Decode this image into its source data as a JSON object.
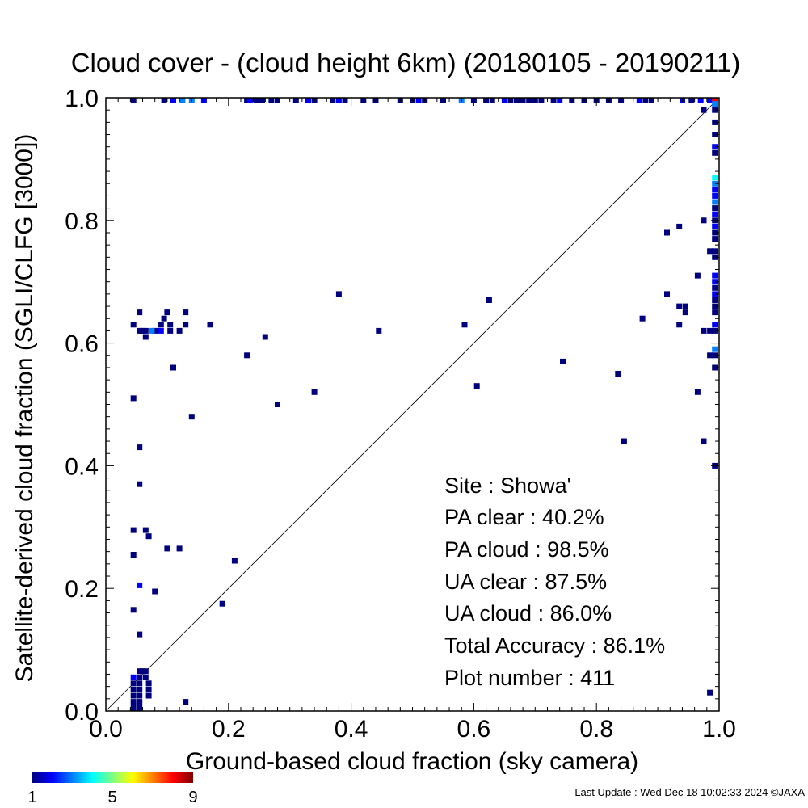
{
  "chart_data": {
    "type": "scatter",
    "title": "Cloud cover - (cloud height 6km)  (20180105 - 20190211)",
    "xlabel": "Ground-based cloud fraction (sky camera)",
    "ylabel": "Satellite-derived cloud fraction (SGLI/CLFG [3000])",
    "xlim": [
      0.0,
      1.0
    ],
    "ylim": [
      0.0,
      1.0
    ],
    "xticks": [
      "0.0",
      "0.2",
      "0.4",
      "0.6",
      "0.8",
      "1.0"
    ],
    "yticks": [
      "0.0",
      "0.2",
      "0.4",
      "0.6",
      "0.8",
      "1.0"
    ],
    "reference_line": "1:1",
    "grid": false,
    "colorbar": {
      "min": 1,
      "max": 9,
      "ticks": [
        "1",
        "5",
        "9"
      ],
      "colors": [
        "#00007f",
        "#0000ff",
        "#007fff",
        "#00ffff",
        "#7fff7f",
        "#ffff00",
        "#ff7f00",
        "#ff0000",
        "#7f0000"
      ]
    },
    "points": [
      {
        "x": 0.045,
        "y": 1.0,
        "c": 1
      },
      {
        "x": 0.095,
        "y": 1.0,
        "c": 1
      },
      {
        "x": 0.11,
        "y": 1.0,
        "c": 2
      },
      {
        "x": 0.125,
        "y": 1.0,
        "c": 3
      },
      {
        "x": 0.14,
        "y": 1.0,
        "c": 3
      },
      {
        "x": 0.16,
        "y": 1.0,
        "c": 2
      },
      {
        "x": 0.23,
        "y": 1.0,
        "c": 1
      },
      {
        "x": 0.235,
        "y": 1.0,
        "c": 2
      },
      {
        "x": 0.245,
        "y": 1.0,
        "c": 1
      },
      {
        "x": 0.255,
        "y": 1.0,
        "c": 1
      },
      {
        "x": 0.27,
        "y": 1.0,
        "c": 1
      },
      {
        "x": 0.28,
        "y": 1.0,
        "c": 1
      },
      {
        "x": 0.31,
        "y": 1.0,
        "c": 1
      },
      {
        "x": 0.33,
        "y": 1.0,
        "c": 2
      },
      {
        "x": 0.34,
        "y": 1.0,
        "c": 1
      },
      {
        "x": 0.37,
        "y": 1.0,
        "c": 1
      },
      {
        "x": 0.38,
        "y": 1.0,
        "c": 2
      },
      {
        "x": 0.39,
        "y": 1.0,
        "c": 1
      },
      {
        "x": 0.42,
        "y": 1.0,
        "c": 1
      },
      {
        "x": 0.44,
        "y": 1.0,
        "c": 1
      },
      {
        "x": 0.48,
        "y": 1.0,
        "c": 1
      },
      {
        "x": 0.5,
        "y": 1.0,
        "c": 1
      },
      {
        "x": 0.51,
        "y": 1.0,
        "c": 2
      },
      {
        "x": 0.52,
        "y": 1.0,
        "c": 1
      },
      {
        "x": 0.55,
        "y": 1.0,
        "c": 1
      },
      {
        "x": 0.58,
        "y": 1.0,
        "c": 3
      },
      {
        "x": 0.6,
        "y": 1.0,
        "c": 1
      },
      {
        "x": 0.62,
        "y": 1.0,
        "c": 1
      },
      {
        "x": 0.63,
        "y": 1.0,
        "c": 1
      },
      {
        "x": 0.65,
        "y": 1.0,
        "c": 2
      },
      {
        "x": 0.66,
        "y": 1.0,
        "c": 1
      },
      {
        "x": 0.67,
        "y": 1.0,
        "c": 1
      },
      {
        "x": 0.68,
        "y": 1.0,
        "c": 1
      },
      {
        "x": 0.69,
        "y": 1.0,
        "c": 1
      },
      {
        "x": 0.7,
        "y": 1.0,
        "c": 1
      },
      {
        "x": 0.71,
        "y": 1.0,
        "c": 1
      },
      {
        "x": 0.73,
        "y": 1.0,
        "c": 1
      },
      {
        "x": 0.74,
        "y": 1.0,
        "c": 2
      },
      {
        "x": 0.76,
        "y": 1.0,
        "c": 1
      },
      {
        "x": 0.78,
        "y": 1.0,
        "c": 1
      },
      {
        "x": 0.8,
        "y": 1.0,
        "c": 1
      },
      {
        "x": 0.82,
        "y": 1.0,
        "c": 1
      },
      {
        "x": 0.84,
        "y": 1.0,
        "c": 1
      },
      {
        "x": 0.87,
        "y": 1.0,
        "c": 2
      },
      {
        "x": 0.88,
        "y": 1.0,
        "c": 1
      },
      {
        "x": 0.89,
        "y": 1.0,
        "c": 1
      },
      {
        "x": 0.94,
        "y": 1.0,
        "c": 2
      },
      {
        "x": 0.955,
        "y": 1.0,
        "c": 1
      },
      {
        "x": 0.97,
        "y": 1.0,
        "c": 2
      },
      {
        "x": 0.985,
        "y": 1.0,
        "c": 2
      },
      {
        "x": 0.993,
        "y": 1.0,
        "c": 8
      },
      {
        "x": 0.993,
        "y": 0.99,
        "c": 3
      },
      {
        "x": 0.993,
        "y": 0.98,
        "c": 1
      },
      {
        "x": 0.993,
        "y": 0.96,
        "c": 1
      },
      {
        "x": 0.993,
        "y": 0.94,
        "c": 1
      },
      {
        "x": 0.993,
        "y": 0.92,
        "c": 2
      },
      {
        "x": 0.993,
        "y": 0.91,
        "c": 1
      },
      {
        "x": 0.993,
        "y": 0.87,
        "c": 4
      },
      {
        "x": 0.993,
        "y": 0.86,
        "c": 3
      },
      {
        "x": 0.993,
        "y": 0.85,
        "c": 2
      },
      {
        "x": 0.993,
        "y": 0.84,
        "c": 2
      },
      {
        "x": 0.993,
        "y": 0.83,
        "c": 3
      },
      {
        "x": 0.993,
        "y": 0.82,
        "c": 1
      },
      {
        "x": 0.993,
        "y": 0.81,
        "c": 2
      },
      {
        "x": 0.993,
        "y": 0.8,
        "c": 1
      },
      {
        "x": 0.993,
        "y": 0.79,
        "c": 2
      },
      {
        "x": 0.993,
        "y": 0.78,
        "c": 1
      },
      {
        "x": 0.993,
        "y": 0.77,
        "c": 1
      },
      {
        "x": 0.993,
        "y": 0.75,
        "c": 1
      },
      {
        "x": 0.993,
        "y": 0.74,
        "c": 1
      },
      {
        "x": 0.993,
        "y": 0.71,
        "c": 2
      },
      {
        "x": 0.993,
        "y": 0.7,
        "c": 2
      },
      {
        "x": 0.993,
        "y": 0.69,
        "c": 1
      },
      {
        "x": 0.993,
        "y": 0.68,
        "c": 2
      },
      {
        "x": 0.993,
        "y": 0.67,
        "c": 1
      },
      {
        "x": 0.993,
        "y": 0.66,
        "c": 1
      },
      {
        "x": 0.993,
        "y": 0.65,
        "c": 1
      },
      {
        "x": 0.993,
        "y": 0.63,
        "c": 2
      },
      {
        "x": 0.993,
        "y": 0.62,
        "c": 1
      },
      {
        "x": 0.993,
        "y": 0.59,
        "c": 3
      },
      {
        "x": 0.993,
        "y": 0.58,
        "c": 1
      },
      {
        "x": 0.993,
        "y": 0.56,
        "c": 1
      },
      {
        "x": 0.993,
        "y": 0.4,
        "c": 1
      },
      {
        "x": 0.985,
        "y": 0.75,
        "c": 1
      },
      {
        "x": 0.985,
        "y": 0.62,
        "c": 1
      },
      {
        "x": 0.985,
        "y": 0.58,
        "c": 1
      },
      {
        "x": 0.985,
        "y": 0.03,
        "c": 1
      },
      {
        "x": 0.975,
        "y": 0.98,
        "c": 1
      },
      {
        "x": 0.975,
        "y": 0.8,
        "c": 1
      },
      {
        "x": 0.975,
        "y": 0.62,
        "c": 1
      },
      {
        "x": 0.975,
        "y": 0.44,
        "c": 1
      },
      {
        "x": 0.965,
        "y": 0.71,
        "c": 1
      },
      {
        "x": 0.965,
        "y": 0.52,
        "c": 1
      },
      {
        "x": 0.945,
        "y": 0.66,
        "c": 1
      },
      {
        "x": 0.945,
        "y": 0.65,
        "c": 1
      },
      {
        "x": 0.935,
        "y": 0.79,
        "c": 1
      },
      {
        "x": 0.935,
        "y": 0.66,
        "c": 1
      },
      {
        "x": 0.935,
        "y": 0.63,
        "c": 1
      },
      {
        "x": 0.915,
        "y": 0.78,
        "c": 1
      },
      {
        "x": 0.915,
        "y": 0.68,
        "c": 1
      },
      {
        "x": 0.875,
        "y": 0.64,
        "c": 1
      },
      {
        "x": 0.845,
        "y": 0.44,
        "c": 1
      },
      {
        "x": 0.835,
        "y": 0.55,
        "c": 1
      },
      {
        "x": 0.745,
        "y": 0.57,
        "c": 1
      },
      {
        "x": 0.625,
        "y": 0.67,
        "c": 1
      },
      {
        "x": 0.605,
        "y": 0.53,
        "c": 1
      },
      {
        "x": 0.585,
        "y": 0.63,
        "c": 1
      },
      {
        "x": 0.445,
        "y": 0.62,
        "c": 1
      },
      {
        "x": 0.38,
        "y": 0.68,
        "c": 1
      },
      {
        "x": 0.34,
        "y": 0.52,
        "c": 1
      },
      {
        "x": 0.28,
        "y": 0.5,
        "c": 1
      },
      {
        "x": 0.26,
        "y": 0.61,
        "c": 1
      },
      {
        "x": 0.23,
        "y": 0.58,
        "c": 1
      },
      {
        "x": 0.21,
        "y": 0.245,
        "c": 1
      },
      {
        "x": 0.19,
        "y": 0.175,
        "c": 1
      },
      {
        "x": 0.17,
        "y": 0.63,
        "c": 1
      },
      {
        "x": 0.14,
        "y": 0.48,
        "c": 1
      },
      {
        "x": 0.13,
        "y": 0.65,
        "c": 1
      },
      {
        "x": 0.13,
        "y": 0.63,
        "c": 1
      },
      {
        "x": 0.13,
        "y": 0.015,
        "c": 1
      },
      {
        "x": 0.12,
        "y": 0.62,
        "c": 1
      },
      {
        "x": 0.12,
        "y": 0.265,
        "c": 1
      },
      {
        "x": 0.11,
        "y": 0.56,
        "c": 1
      },
      {
        "x": 0.105,
        "y": 0.63,
        "c": 1
      },
      {
        "x": 0.105,
        "y": 0.62,
        "c": 1
      },
      {
        "x": 0.1,
        "y": 0.65,
        "c": 1
      },
      {
        "x": 0.1,
        "y": 0.265,
        "c": 1
      },
      {
        "x": 0.095,
        "y": 0.64,
        "c": 1
      },
      {
        "x": 0.09,
        "y": 0.63,
        "c": 1
      },
      {
        "x": 0.09,
        "y": 0.62,
        "c": 2
      },
      {
        "x": 0.08,
        "y": 0.62,
        "c": 1
      },
      {
        "x": 0.08,
        "y": 0.195,
        "c": 1
      },
      {
        "x": 0.075,
        "y": 0.62,
        "c": 3
      },
      {
        "x": 0.07,
        "y": 0.285,
        "c": 1
      },
      {
        "x": 0.07,
        "y": 0.045,
        "c": 1
      },
      {
        "x": 0.07,
        "y": 0.035,
        "c": 1
      },
      {
        "x": 0.07,
        "y": 0.025,
        "c": 1
      },
      {
        "x": 0.065,
        "y": 0.62,
        "c": 1
      },
      {
        "x": 0.065,
        "y": 0.61,
        "c": 1
      },
      {
        "x": 0.065,
        "y": 0.295,
        "c": 1
      },
      {
        "x": 0.065,
        "y": 0.065,
        "c": 1
      },
      {
        "x": 0.065,
        "y": 0.055,
        "c": 1
      },
      {
        "x": 0.06,
        "y": 0.62,
        "c": 1
      },
      {
        "x": 0.06,
        "y": 0.065,
        "c": 1
      },
      {
        "x": 0.055,
        "y": 0.65,
        "c": 1
      },
      {
        "x": 0.055,
        "y": 0.62,
        "c": 1
      },
      {
        "x": 0.055,
        "y": 0.43,
        "c": 1
      },
      {
        "x": 0.055,
        "y": 0.37,
        "c": 1
      },
      {
        "x": 0.055,
        "y": 0.205,
        "c": 2
      },
      {
        "x": 0.055,
        "y": 0.125,
        "c": 1
      },
      {
        "x": 0.055,
        "y": 0.065,
        "c": 1
      },
      {
        "x": 0.055,
        "y": 0.055,
        "c": 1
      },
      {
        "x": 0.055,
        "y": 0.045,
        "c": 1
      },
      {
        "x": 0.055,
        "y": 0.035,
        "c": 1
      },
      {
        "x": 0.055,
        "y": 0.025,
        "c": 1
      },
      {
        "x": 0.055,
        "y": 0.015,
        "c": 1
      },
      {
        "x": 0.055,
        "y": 0.005,
        "c": 1
      },
      {
        "x": 0.045,
        "y": 0.63,
        "c": 1
      },
      {
        "x": 0.045,
        "y": 0.51,
        "c": 1
      },
      {
        "x": 0.045,
        "y": 0.295,
        "c": 1
      },
      {
        "x": 0.045,
        "y": 0.255,
        "c": 1
      },
      {
        "x": 0.045,
        "y": 0.165,
        "c": 1
      },
      {
        "x": 0.045,
        "y": 0.055,
        "c": 2
      },
      {
        "x": 0.045,
        "y": 0.045,
        "c": 1
      },
      {
        "x": 0.045,
        "y": 0.035,
        "c": 1
      },
      {
        "x": 0.045,
        "y": 0.025,
        "c": 1
      },
      {
        "x": 0.045,
        "y": 0.015,
        "c": 1
      },
      {
        "x": 0.045,
        "y": 0.005,
        "c": 1
      }
    ]
  },
  "stats": {
    "site": "Site : Showa'",
    "pa_clear": "PA clear :  40.2%",
    "pa_cloud": "PA cloud :  98.5%",
    "ua_clear": "UA clear :  87.5%",
    "ua_cloud": "UA cloud :  86.0%",
    "total_accuracy": "Total Accuracy :  86.1%",
    "plot_number": "Plot number :       411"
  },
  "footer": {
    "last_update": "Last Update : Wed Dec 18 10:02:33 2024  ©JAXA"
  }
}
